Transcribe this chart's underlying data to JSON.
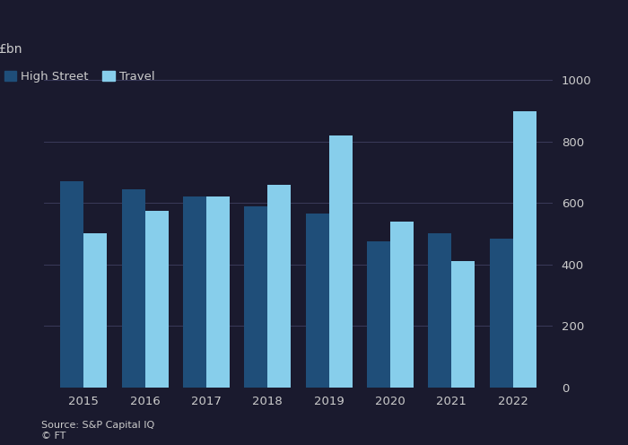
{
  "years": [
    2015,
    2016,
    2017,
    2018,
    2019,
    2020,
    2021,
    2022
  ],
  "high_street": [
    670,
    645,
    620,
    590,
    565,
    475,
    500,
    485
  ],
  "travel": [
    500,
    575,
    620,
    660,
    820,
    540,
    410,
    900
  ],
  "high_street_color": "#1f4e79",
  "travel_color": "#87ceeb",
  "ylabel": "£bn",
  "ylim": [
    0,
    1000
  ],
  "yticks": [
    0,
    200,
    400,
    600,
    800,
    1000
  ],
  "legend_high_street": "High Street",
  "legend_travel": "Travel",
  "background_color": "#1a1a2e",
  "plot_bg_color": "#1a1a2e",
  "grid_color": "#3a3a5a",
  "text_color": "#cccccc",
  "source": "Source: S&P Capital IQ\n© FT",
  "bar_width": 0.38
}
